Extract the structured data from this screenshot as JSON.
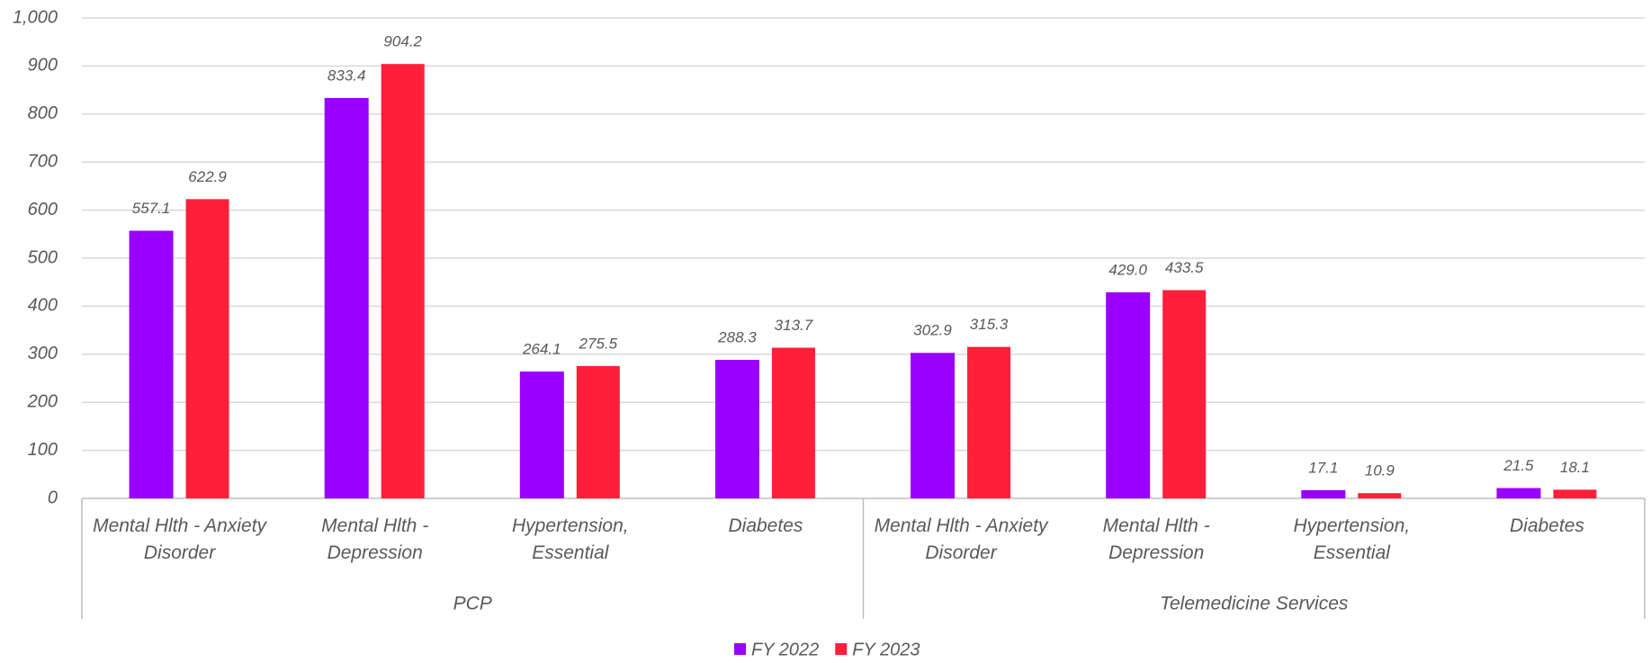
{
  "chart_data": {
    "type": "bar",
    "categories": [
      "Mental Hlth - Anxiety Disorder",
      "Mental Hlth - Depression",
      "Hypertension, Essential",
      "Diabetes",
      "Mental Hlth - Anxiety Disorder",
      "Mental Hlth - Depression",
      "Hypertension, Essential",
      "Diabetes"
    ],
    "group_labels": [
      "PCP",
      "Telemedicine Services"
    ],
    "series": [
      {
        "name": "FY 2022",
        "color": "#9a00ff",
        "values": [
          557.1,
          833.4,
          264.1,
          288.3,
          302.9,
          429.0,
          17.1,
          21.5
        ],
        "value_labels": [
          "557.1",
          "833.4",
          "264.1",
          "288.3",
          "302.9",
          "429.0",
          "17.1",
          "21.5"
        ]
      },
      {
        "name": "FY 2023",
        "color": "#ff1f3a",
        "values": [
          622.9,
          904.2,
          275.5,
          313.7,
          315.3,
          433.5,
          10.9,
          18.1
        ],
        "value_labels": [
          "622.9",
          "904.2",
          "275.5",
          "313.7",
          "315.3",
          "433.5",
          "10.9",
          "18.1"
        ]
      }
    ],
    "ylim": [
      0,
      1000
    ],
    "yticks": [
      0,
      100,
      200,
      300,
      400,
      500,
      600,
      700,
      800,
      900,
      {
        "value": 1000,
        "label": "1,000"
      }
    ],
    "grid": true,
    "legend": "bottom"
  }
}
